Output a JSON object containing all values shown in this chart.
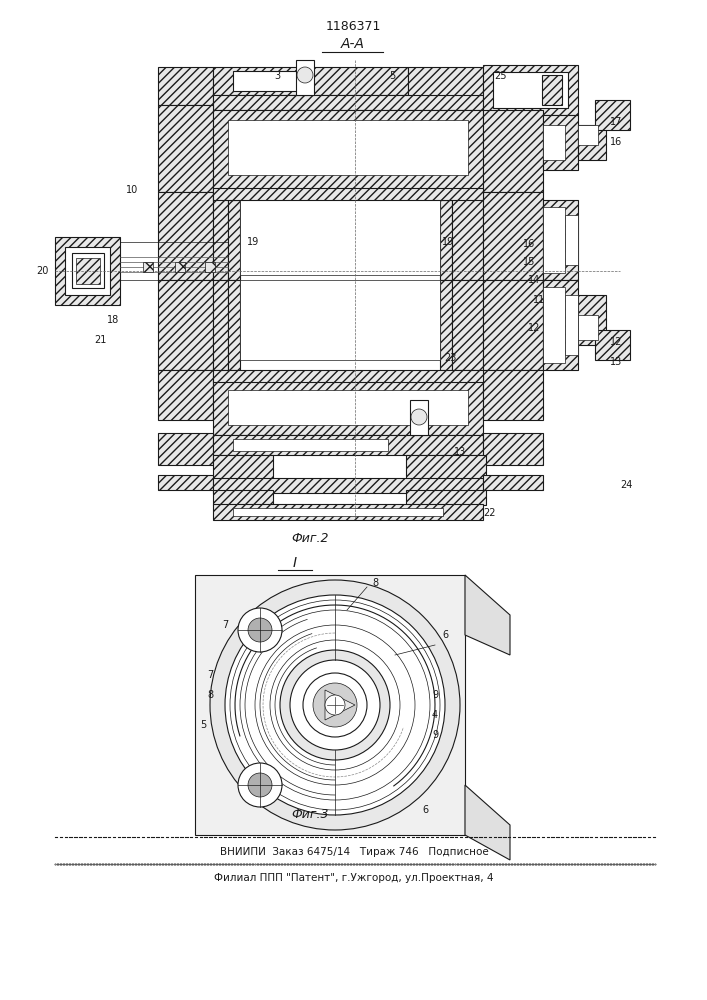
{
  "patent_number": "1186371",
  "section_label_top": "А-А",
  "fig2_label": "Фиг.2",
  "fig3_label": "Фиг.3",
  "section_label_i": "I",
  "footer_line1": "ВНИИПИ  Заказ 6475/14   Тираж 746   Подписное",
  "footer_line2": "Филиал ППП \"Патент\", г.Ужгород, ул.Проектная, 4",
  "bg_color": "#ffffff",
  "line_color": "#1a1a1a"
}
